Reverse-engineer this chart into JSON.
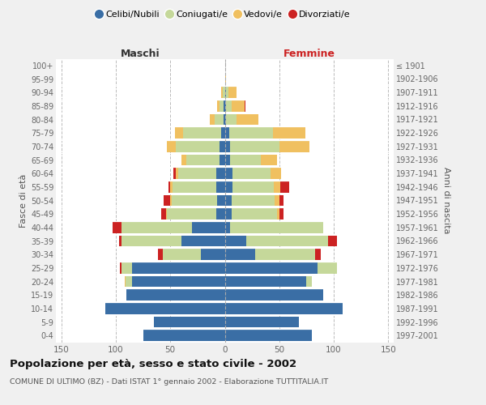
{
  "age_groups": [
    "0-4",
    "5-9",
    "10-14",
    "15-19",
    "20-24",
    "25-29",
    "30-34",
    "35-39",
    "40-44",
    "45-49",
    "50-54",
    "55-59",
    "60-64",
    "65-69",
    "70-74",
    "75-79",
    "80-84",
    "85-89",
    "90-94",
    "95-99",
    "100+"
  ],
  "birth_years": [
    "1997-2001",
    "1992-1996",
    "1987-1991",
    "1982-1986",
    "1977-1981",
    "1972-1976",
    "1967-1971",
    "1962-1966",
    "1957-1961",
    "1952-1956",
    "1947-1951",
    "1942-1946",
    "1937-1941",
    "1932-1936",
    "1927-1931",
    "1922-1926",
    "1917-1921",
    "1912-1916",
    "1907-1911",
    "1902-1906",
    "≤ 1901"
  ],
  "maschi": {
    "celibi": [
      75,
      65,
      110,
      90,
      85,
      85,
      22,
      40,
      30,
      8,
      7,
      8,
      8,
      5,
      5,
      3,
      1,
      1,
      0,
      0,
      0
    ],
    "coniugati": [
      0,
      0,
      0,
      0,
      6,
      10,
      35,
      55,
      65,
      45,
      42,
      40,
      35,
      30,
      40,
      35,
      8,
      4,
      2,
      0,
      0
    ],
    "vedovi": [
      0,
      0,
      0,
      0,
      1,
      0,
      0,
      0,
      0,
      1,
      1,
      2,
      2,
      5,
      8,
      8,
      5,
      2,
      1,
      0,
      0
    ],
    "divorziati": [
      0,
      0,
      0,
      0,
      0,
      1,
      4,
      2,
      8,
      4,
      6,
      2,
      2,
      0,
      0,
      0,
      0,
      0,
      0,
      0,
      0
    ]
  },
  "femmine": {
    "nubili": [
      80,
      68,
      108,
      90,
      75,
      85,
      28,
      20,
      5,
      6,
      6,
      7,
      7,
      5,
      5,
      4,
      1,
      1,
      1,
      0,
      0
    ],
    "coniugate": [
      0,
      0,
      0,
      0,
      5,
      18,
      55,
      75,
      85,
      42,
      40,
      38,
      35,
      28,
      45,
      40,
      10,
      5,
      2,
      0,
      0
    ],
    "vedove": [
      0,
      0,
      0,
      0,
      0,
      0,
      0,
      0,
      0,
      2,
      4,
      6,
      10,
      15,
      28,
      30,
      20,
      12,
      8,
      1,
      0
    ],
    "divorziate": [
      0,
      0,
      0,
      0,
      0,
      0,
      5,
      8,
      0,
      4,
      4,
      8,
      0,
      0,
      0,
      0,
      0,
      1,
      0,
      0,
      0
    ]
  },
  "colors": {
    "celibi_nubili": "#3a6ea5",
    "coniugati": "#c5d89a",
    "vedovi": "#f0c060",
    "divorziati": "#cc2222"
  },
  "xlim": 155,
  "title": "Popolazione per età, sesso e stato civile - 2002",
  "subtitle": "COMUNE DI ULTIMO (BZ) - Dati ISTAT 1° gennaio 2002 - Elaborazione TUTTITALIA.IT",
  "xlabel_left": "Maschi",
  "xlabel_right": "Femmine",
  "ylabel_left": "Fasce di età",
  "ylabel_right": "Anni di nascita",
  "bg_color": "#f0f0f0",
  "plot_bg": "#ffffff",
  "grid_color": "#bbbbbb"
}
